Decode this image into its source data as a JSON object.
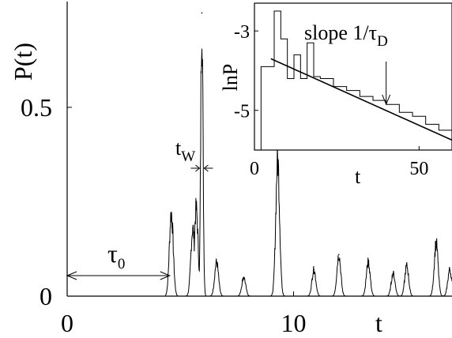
{
  "chart_data": [
    {
      "type": "line",
      "ylabel": "P(t)",
      "xlabel": "t",
      "xlim": [
        0,
        17
      ],
      "ylim": [
        0,
        0.78
      ],
      "xticks": [
        0,
        10
      ],
      "yticks": [
        0,
        0.5
      ],
      "xtick_labels": [
        "0",
        "10"
      ],
      "ytick_labels": [
        "0",
        "0.5"
      ],
      "peaks": [
        {
          "x": 4.6,
          "y": 0.22
        },
        {
          "x": 5.55,
          "y": 0.18
        },
        {
          "x": 5.7,
          "y": 0.23
        },
        {
          "x": 5.95,
          "y": 0.75
        },
        {
          "x": 6.6,
          "y": 0.09
        },
        {
          "x": 7.8,
          "y": 0.05
        },
        {
          "x": 9.3,
          "y": 0.36
        },
        {
          "x": 10.9,
          "y": 0.07
        },
        {
          "x": 12.0,
          "y": 0.11
        },
        {
          "x": 13.3,
          "y": 0.09
        },
        {
          "x": 14.4,
          "y": 0.06
        },
        {
          "x": 15.0,
          "y": 0.08
        },
        {
          "x": 16.3,
          "y": 0.14
        },
        {
          "x": 16.9,
          "y": 0.07
        }
      ],
      "annotations": {
        "tau0": {
          "label": "τ",
          "sub": "0",
          "from": 0,
          "to": 4.6
        },
        "tw": {
          "label": "t",
          "sub": "W"
        }
      }
    },
    {
      "type": "line",
      "ylabel": "lnP",
      "xlabel": "t",
      "xlim": [
        0,
        60
      ],
      "ylim": [
        -6.0,
        -2.3
      ],
      "xticks": [
        0,
        50
      ],
      "yticks": [
        -3,
        -5
      ],
      "xtick_labels": [
        "0",
        "50"
      ],
      "ytick_labels": [
        "-3",
        "-5"
      ],
      "histogram": {
        "x": [
          2,
          4,
          6,
          8,
          10,
          12,
          14,
          16,
          18,
          20,
          24,
          28,
          32,
          36,
          40,
          44,
          48,
          52,
          56,
          60
        ],
        "y": [
          -3.9,
          -3.9,
          -2.5,
          -3.2,
          -4.2,
          -3.6,
          -4.2,
          -3.3,
          -4.15,
          -4.2,
          -4.4,
          -4.5,
          -4.65,
          -4.75,
          -4.85,
          -5.05,
          -5.15,
          -5.35,
          -5.5,
          -5.65
        ]
      },
      "fit_line": {
        "x": [
          5,
          60
        ],
        "y": [
          -3.7,
          -5.75
        ]
      },
      "annotation": {
        "text": "slope 1/τ",
        "sub": "D",
        "arrow_x": 40
      }
    }
  ]
}
